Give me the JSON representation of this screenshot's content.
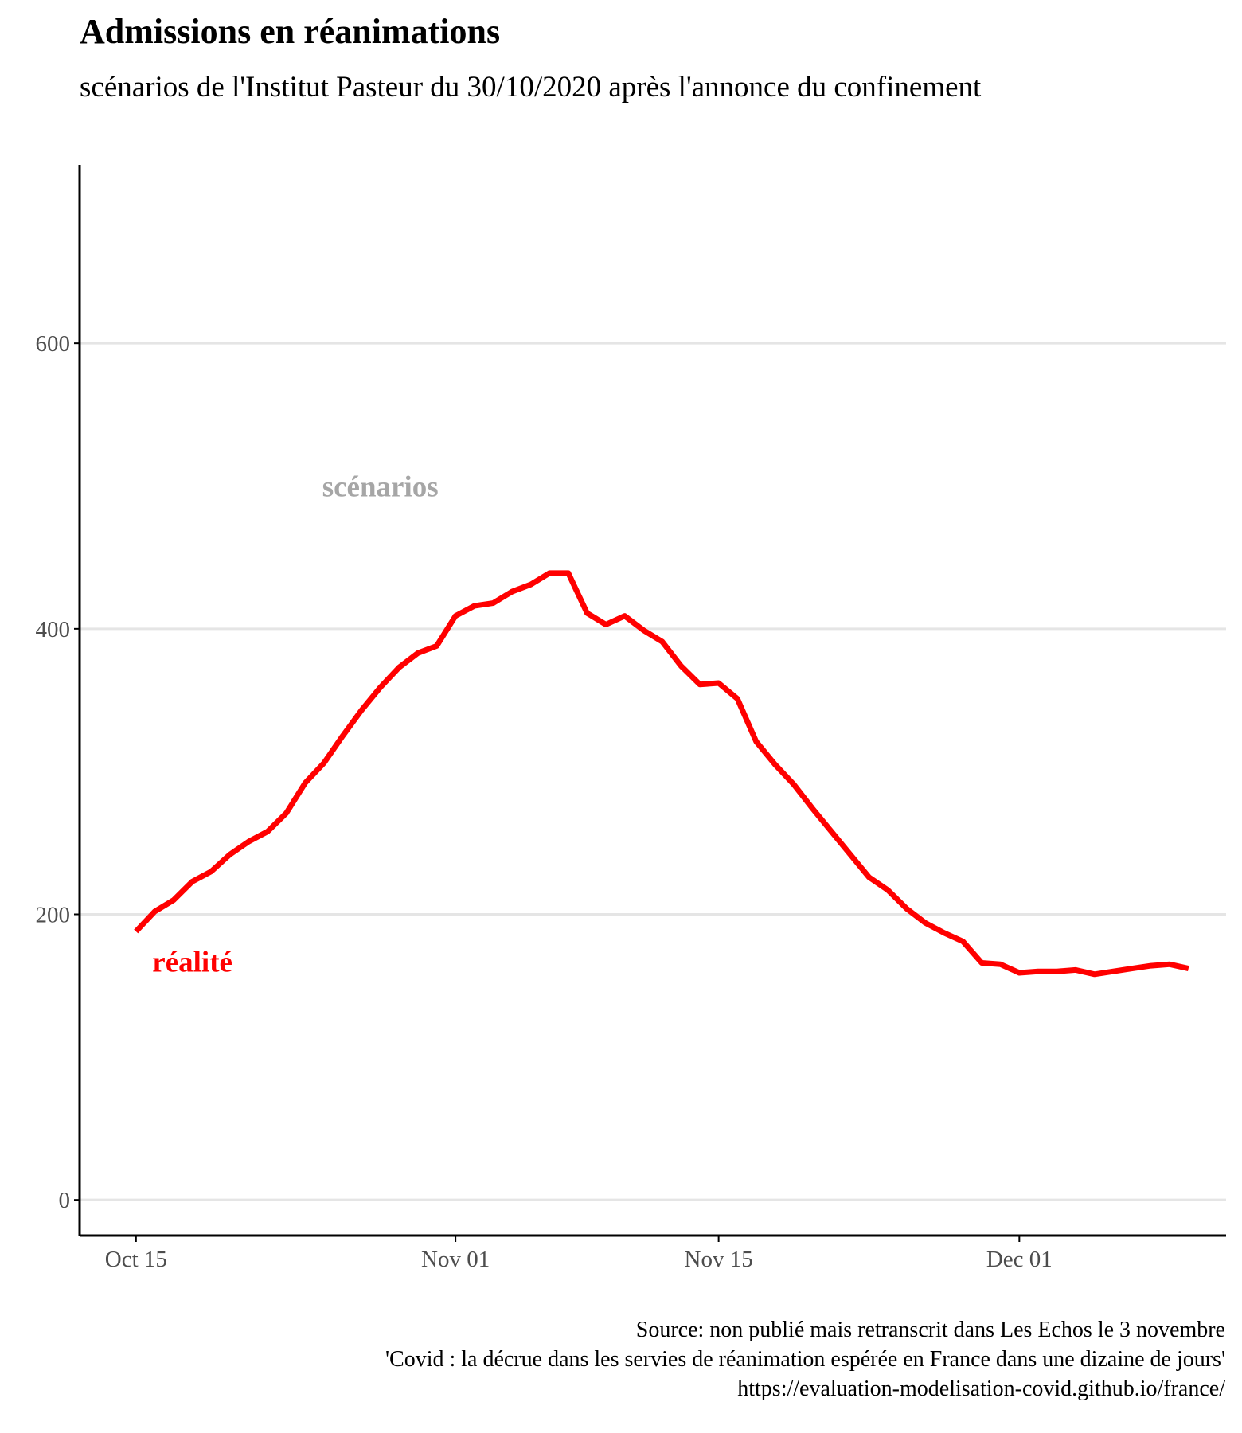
{
  "title": "Admissions en réanimations",
  "subtitle": "scénarios de l'Institut Pasteur du 30/10/2020 après l'annonce du confinement",
  "caption": {
    "line1": "Source:  non publié mais retranscrit dans Les Echos le 3 novembre",
    "line2": "'Covid : la décrue dans les servies de réanimation espérée en France dans une dizaine de jours'",
    "line3": "https://evaluation-modelisation-covid.github.io/france/"
  },
  "colors": {
    "realite": "#ff0000",
    "scenarios": "#a6a6a6",
    "grid": "#e5e5e5",
    "axis": "#000000"
  },
  "chart_data": {
    "type": "line",
    "xlabel": "",
    "ylabel": "",
    "x_type": "date",
    "xlim": [
      "2020-10-12",
      "2020-12-12"
    ],
    "ylim": [
      -25,
      725
    ],
    "grid": "horizontal major",
    "x_ticks": [
      {
        "date": "2020-10-15",
        "label": "Oct 15"
      },
      {
        "date": "2020-11-01",
        "label": "Nov 01"
      },
      {
        "date": "2020-11-15",
        "label": "Nov 15"
      },
      {
        "date": "2020-12-01",
        "label": "Dec 01"
      }
    ],
    "y_ticks": [
      0,
      200,
      400,
      600
    ],
    "annotations": [
      {
        "text": "scénarios",
        "x": "2020-10-28",
        "y": 500,
        "color": "#a6a6a6"
      },
      {
        "text": "réalité",
        "x": "2020-10-18",
        "y": 167,
        "color": "#ff0000"
      }
    ],
    "series": [
      {
        "label": "réalité",
        "color": "#ff0000",
        "x": [
          "2020-10-15",
          "2020-10-16",
          "2020-10-17",
          "2020-10-18",
          "2020-10-19",
          "2020-10-20",
          "2020-10-21",
          "2020-10-22",
          "2020-10-23",
          "2020-10-24",
          "2020-10-25",
          "2020-10-26",
          "2020-10-27",
          "2020-10-28",
          "2020-10-29",
          "2020-10-30",
          "2020-10-31",
          "2020-11-01",
          "2020-11-02",
          "2020-11-03",
          "2020-11-04",
          "2020-11-05",
          "2020-11-06",
          "2020-11-07",
          "2020-11-08",
          "2020-11-09",
          "2020-11-10",
          "2020-11-11",
          "2020-11-12",
          "2020-11-13",
          "2020-11-14",
          "2020-11-15",
          "2020-11-16",
          "2020-11-17",
          "2020-11-18",
          "2020-11-19",
          "2020-11-20",
          "2020-11-21",
          "2020-11-22",
          "2020-11-23",
          "2020-11-24",
          "2020-11-25",
          "2020-11-26",
          "2020-11-27",
          "2020-11-28",
          "2020-11-29",
          "2020-11-30",
          "2020-12-01",
          "2020-12-02",
          "2020-12-03",
          "2020-12-04",
          "2020-12-05",
          "2020-12-06",
          "2020-12-07",
          "2020-12-08",
          "2020-12-09",
          "2020-12-10"
        ],
        "y": [
          188,
          202,
          210,
          223,
          230,
          242,
          251,
          258,
          271,
          292,
          306,
          325,
          343,
          359,
          373,
          383,
          388,
          409,
          416,
          418,
          426,
          431,
          439,
          439,
          411,
          403,
          409,
          399,
          391,
          374,
          361,
          362,
          351,
          321,
          305,
          291,
          274,
          258,
          242,
          226,
          217,
          204,
          194,
          187,
          181,
          166,
          165,
          159,
          160,
          160,
          161,
          158,
          160,
          162,
          164,
          165,
          162
        ]
      }
    ]
  }
}
